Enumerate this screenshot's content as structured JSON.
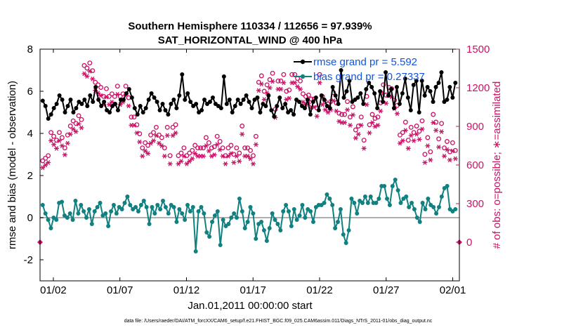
{
  "chart_data": {
    "type": "line",
    "title": "Southern Hemisphere 110334 / 112656 = 97.939%",
    "subtitle": "SAT_HORIZONTAL_WIND @ 400 hPa",
    "xlabel": "Jan.01,2011 00:00:00 start",
    "ylabel": "rmse and bias (model - observation)",
    "ylabel_right": "# of obs: o=possible; ∗=assimilated",
    "footer": "data file: /Users/raeder/DAI/ATM_forcXX/CAM6_setup/f.e21.FHIST_BGC.f09_025.CAM6assim.011/Diags_NTrS_2011-01/obs_diag_output.nc",
    "xlim": [
      0,
      31.5
    ],
    "ylim": [
      -3,
      8
    ],
    "ylim_right": [
      -300,
      1500
    ],
    "x_tick_labels": [
      "01/02",
      "01/07",
      "01/12",
      "01/17",
      "01/22",
      "01/27",
      "02/01"
    ],
    "y_tick_labels": [
      "-2",
      "0",
      "2",
      "4",
      "6",
      "8"
    ],
    "y_right_tick_labels": [
      "0",
      "300",
      "600",
      "900",
      "1200",
      "1500"
    ],
    "legend": [
      "rmse grand pr = 5.592",
      "bias grand pr = 0.27337"
    ],
    "colors": {
      "rmse": "#000000",
      "bias": "#108080",
      "obs": "#cc1166",
      "zero": "#b0b0b0"
    },
    "series": [
      {
        "name": "rmse",
        "axis": "left",
        "values": [
          5.55,
          5.3,
          4.7,
          4.9,
          5.2,
          5.4,
          5.8,
          5.6,
          5.0,
          5.3,
          5.6,
          5.0,
          5.2,
          5.5,
          5.4,
          5.6,
          5.3,
          5.8,
          5.5,
          6.2,
          5.6,
          5.3,
          5.5,
          5.1,
          5.0,
          5.3,
          5.4,
          5.1,
          5.6,
          5.6,
          5.9,
          6.1,
          5.7,
          5.2,
          4.9,
          5.3,
          5.0,
          5.2,
          5.6,
          5.9,
          5.7,
          5.5,
          5.1,
          5.4,
          5.1,
          4.9,
          5.4,
          5.6,
          5.2,
          5.8,
          6.8,
          5.6,
          5.9,
          5.5,
          5.3,
          5.4,
          5.0,
          5.1,
          5.6,
          5.4,
          5.5,
          5.7,
          5.4,
          5.3,
          5.2,
          6.7,
          5.4,
          5.6,
          5.0,
          5.3,
          5.6,
          5.4,
          5.6,
          5.8,
          5.5,
          5.2,
          5.6,
          5.7,
          5.0,
          5.4,
          5.3,
          5.8,
          5.1,
          4.8,
          5.3,
          5.7,
          5.2,
          5.4,
          5.0,
          5.1,
          4.9,
          5.6,
          5.5,
          5.3,
          5.2,
          5.6,
          4.9,
          5.5,
          5.7,
          5.1,
          5.8,
          5.6,
          5.3,
          5.2,
          6.2,
          5.8,
          5.4,
          7.0,
          5.7,
          6.0,
          6.5,
          5.5,
          5.6,
          5.7,
          5.9,
          5.4,
          6.1,
          6.4,
          6.2,
          5.9,
          5.2,
          6.0,
          5.5,
          6.9,
          5.8,
          6.1,
          5.2,
          6.2,
          5.4,
          5.9,
          6.6,
          5.7,
          5.1,
          6.3,
          6.5,
          5.0,
          6.5,
          5.8,
          6.2,
          6.0,
          5.5,
          6.2,
          6.4,
          6.9,
          5.5,
          5.6,
          6.2,
          5.7,
          6.4
        ]
      },
      {
        "name": "bias",
        "axis": "left",
        "values": [
          0.6,
          0.2,
          -0.1,
          -0.5,
          0.0,
          -0.1,
          0.7,
          0.75,
          0.1,
          0.0,
          0.2,
          -0.1,
          0.8,
          0.2,
          0.6,
          0.3,
          0.0,
          0.4,
          -0.3,
          0.3,
          0.5,
          0.7,
          0.1,
          0.2,
          -0.4,
          0.3,
          0.6,
          0.2,
          0.5,
          0.4,
          0.7,
          1.0,
          0.6,
          0.4,
          0.5,
          0.3,
          0.6,
          0.8,
          0.5,
          -0.3,
          0.5,
          0.2,
          0.6,
          0.4,
          0.8,
          0.5,
          0.2,
          0.6,
          0.5,
          -0.2,
          0.4,
          0.2,
          -0.1,
          0.6,
          0.3,
          0.5,
          -1.6,
          0.3,
          0.5,
          0.2,
          -0.7,
          -0.9,
          -0.2,
          0.1,
          0.3,
          -1.3,
          -0.1,
          -0.4,
          -0.3,
          0.0,
          0.2,
          0.0,
          0.9,
          0.3,
          -0.5,
          -0.2,
          0.5,
          0.2,
          -1.0,
          -0.3,
          -0.2,
          -0.6,
          -1.1,
          -0.5,
          0.2,
          -0.1,
          -0.3,
          -0.6,
          0.3,
          0.6,
          0.3,
          -0.4,
          0.4,
          -0.1,
          0.1,
          0.6,
          0.0,
          0.4,
          0.3,
          -0.2,
          0.5,
          0.6,
          0.6,
          0.7,
          1.1,
          0.9,
          0.6,
          -0.5,
          -0.2,
          0.4,
          -0.8,
          -1.2,
          -0.6,
          0.9,
          0.7,
          0.2,
          0.8,
          0.7,
          1.0,
          0.7,
          1.0,
          0.7,
          0.7,
          0.9,
          1.5,
          1.5,
          0.9,
          0.6,
          1.5,
          1.8,
          1.3,
          0.7,
          0.9,
          1.0,
          0.5,
          0.7,
          0.4,
          0.0,
          -0.2,
          0.7,
          0.4,
          0.9,
          0.6,
          0.5,
          0.2,
          0.5,
          1.0,
          1.4,
          1.5,
          0.4,
          0.3,
          0.4
        ]
      },
      {
        "name": "obs possible",
        "axis": "right",
        "values": [
          600,
          620,
          640,
          820,
          790,
          760,
          820,
          780,
          700,
          800,
          870,
          910,
          890,
          950,
          920,
          1340,
          1320,
          1360,
          1300,
          1210,
          1190,
          1170,
          1100,
          1160,
          1100,
          1120,
          1100,
          1180,
          1100,
          1120,
          1180,
          1090,
          940,
          940,
          880,
          810,
          700,
          740,
          720,
          800,
          820,
          860,
          800,
          780,
          700,
          860,
          640,
          860,
          880,
          640,
          660,
          700,
          640,
          660,
          680,
          720,
          700,
          700,
          700,
          780,
          740,
          700,
          710,
          790,
          750,
          700,
          640,
          700,
          720,
          650,
          700,
          660,
          870,
          700,
          700,
          680,
          640,
          790,
          1210,
          1260,
          1140,
          1190,
          1230,
          1280,
          1000,
          1220,
          1220,
          1270,
          1140,
          1150,
          1270,
          1270,
          1240,
          1220,
          1120,
          1100,
          1110,
          1080,
          1080,
          1010,
          1270,
          1100,
          1060,
          1040,
          1060,
          1130,
          1050,
          970,
          960,
          960,
          1060,
          940,
          1020,
          840,
          870,
          940,
          760,
          1100,
          880,
          960,
          930,
          940,
          1050,
          1190,
          1110,
          1170,
          1160,
          1070,
          1030,
          800,
          820,
          900,
          760,
          860,
          820,
          870,
          830,
          910,
          650,
          780,
          670,
          960,
          900,
          770,
          890,
          700,
          750,
          670,
          740,
          680
        ]
      },
      {
        "name": "obs assimilated",
        "axis": "right",
        "values": [
          590,
          610,
          630,
          800,
          770,
          740,
          800,
          760,
          690,
          780,
          850,
          890,
          870,
          930,
          900,
          1320,
          1300,
          1340,
          1280,
          1190,
          1170,
          1150,
          1080,
          1140,
          1080,
          1100,
          1080,
          1160,
          1080,
          1100,
          1160,
          1070,
          920,
          920,
          860,
          790,
          680,
          720,
          700,
          780,
          800,
          840,
          780,
          760,
          680,
          840,
          620,
          840,
          860,
          620,
          640,
          680,
          620,
          640,
          660,
          700,
          680,
          680,
          680,
          760,
          720,
          680,
          690,
          770,
          730,
          680,
          620,
          680,
          700,
          630,
          680,
          640,
          850,
          680,
          680,
          660,
          620,
          770,
          1190,
          1240,
          1120,
          1170,
          1210,
          1260,
          980,
          1200,
          1200,
          1250,
          1120,
          1130,
          1250,
          1250,
          1220,
          1200,
          1100,
          1080,
          1090,
          1060,
          1060,
          990,
          1250,
          1080,
          1040,
          1020,
          1040,
          1110,
          1030,
          950,
          940,
          940,
          1040,
          920,
          1000,
          820,
          850,
          920,
          740,
          1080,
          860,
          940,
          910,
          920,
          1030,
          1170,
          1090,
          1150,
          1140,
          1050,
          1010,
          780,
          800,
          880,
          740,
          840,
          800,
          850,
          810,
          890,
          630,
          760,
          650,
          940,
          880,
          750,
          870,
          680,
          730,
          650,
          720,
          660
        ]
      },
      {
        "name": "obs-marks-edge",
        "axis": "right",
        "values": [
          0,
          0
        ]
      }
    ]
  }
}
